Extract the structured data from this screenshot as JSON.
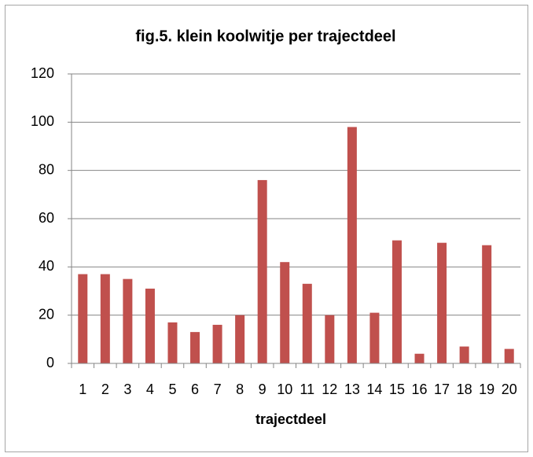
{
  "chart_data": {
    "type": "bar",
    "title": "fig.5. klein koolwitje per trajectdeel",
    "x_label": "trajectdeel",
    "categories": [
      "1",
      "2",
      "3",
      "4",
      "5",
      "6",
      "7",
      "8",
      "9",
      "10",
      "11",
      "12",
      "13",
      "14",
      "15",
      "16",
      "17",
      "18",
      "19",
      "20"
    ],
    "values": [
      37,
      37,
      35,
      31,
      17,
      13,
      16,
      20,
      76,
      42,
      33,
      20,
      98,
      21,
      51,
      4,
      50,
      7,
      49,
      6
    ],
    "color": "#c0504d",
    "ylim": [
      0,
      120
    ],
    "yticks": [
      0,
      20,
      40,
      60,
      80,
      100,
      120
    ],
    "grid": true
  }
}
